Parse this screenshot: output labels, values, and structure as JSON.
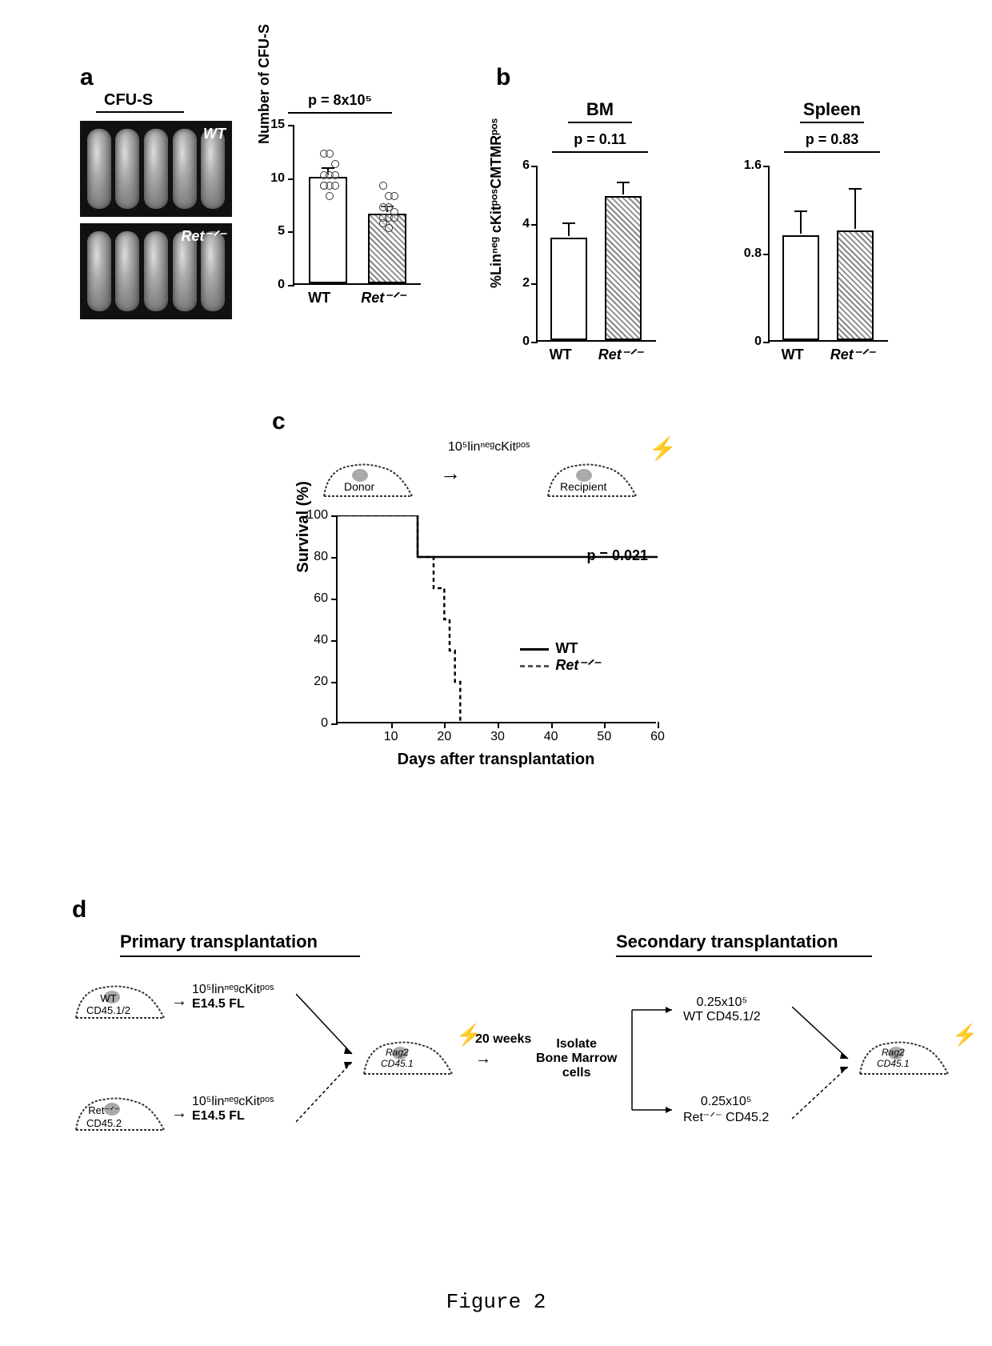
{
  "caption": "Figure 2",
  "panelA": {
    "label": "a",
    "cfus_label": "CFU-S",
    "image_labels": {
      "wt": "WT",
      "ret": "Ret⁻ᐟ⁻"
    },
    "pvalue": "p = 8x10⁵",
    "ylabel": "Number of CFU-S",
    "ymax": 15,
    "ytick_step": 5,
    "wt_mean": 10.0,
    "wt_err": 0.6,
    "ret_mean": 6.5,
    "ret_err": 0.5,
    "wt_points": [
      12,
      12,
      11,
      10,
      10,
      10,
      9,
      9,
      9,
      9,
      8
    ],
    "ret_points": [
      9,
      8,
      8,
      7,
      7,
      6.5,
      6,
      6,
      6,
      5.5,
      5
    ],
    "xlabels": [
      "WT",
      "Ret⁻ᐟ⁻"
    ],
    "bar_colors": {
      "wt": "#ffffff",
      "ret_hatch": "#888888"
    }
  },
  "panelB": {
    "label": "b",
    "ylabel": "%Linⁿᵉᵍ cKitᵖᵒˢCMTMRᵖᵒˢ",
    "bm": {
      "title": "BM",
      "pvalue": "p = 0.11",
      "ymax": 6,
      "ytick_step": 2,
      "wt_mean": 3.5,
      "wt_err": 0.4,
      "ret_mean": 4.9,
      "ret_err": 0.4
    },
    "spleen": {
      "title": "Spleen",
      "pvalue": "p = 0.83",
      "ymax": 1.6,
      "ytick_step": 0.8,
      "wt_mean": 0.95,
      "wt_err": 0.2,
      "ret_mean": 1.0,
      "ret_err": 0.35
    },
    "xlabels": [
      "WT",
      "Ret⁻ᐟ⁻"
    ]
  },
  "panelC": {
    "label": "c",
    "schematic_text": "10⁵linⁿᵉᵍcKitᵖᵒˢ",
    "donor": "Donor",
    "recipient": "Recipient",
    "pvalue": "p = 0.021",
    "ylabel": "Survival (%)",
    "xlabel": "Days after transplantation",
    "xmax": 60,
    "xtick_step": 10,
    "ymax": 100,
    "ytick_step": 20,
    "wt_curve": [
      [
        0,
        100
      ],
      [
        15,
        100
      ],
      [
        15,
        80
      ],
      [
        60,
        80
      ]
    ],
    "ret_curve": [
      [
        0,
        100
      ],
      [
        15,
        100
      ],
      [
        15,
        80
      ],
      [
        18,
        80
      ],
      [
        18,
        65
      ],
      [
        20,
        65
      ],
      [
        20,
        50
      ],
      [
        21,
        50
      ],
      [
        21,
        35
      ],
      [
        22,
        35
      ],
      [
        22,
        20
      ],
      [
        23,
        20
      ],
      [
        23,
        0
      ]
    ],
    "legend": {
      "wt": "WT",
      "ret": "Ret⁻ᐟ⁻"
    }
  },
  "panelD": {
    "label": "d",
    "primary_title": "Primary transplantation",
    "secondary_title": "Secondary transplantation",
    "wt_donor": "WT\nCD45.1/2",
    "ret_donor": "Ret⁻ᐟ⁻\nCD45.2",
    "cells_label": "10⁵linⁿᵉᵍcKitᵖᵒˢ",
    "fl_label": "E14.5 FL",
    "recipient1": "Rag2\nCD45.1",
    "time": "20 weeks",
    "isolate": "Isolate\nBone Marrow\ncells",
    "sec_wt": "0.25x10⁵\nWT CD45.1/2",
    "sec_ret": "0.25x10⁵\nRet⁻ᐟ⁻ CD45.2",
    "recipient2": "Rag2\nCD45.1"
  }
}
